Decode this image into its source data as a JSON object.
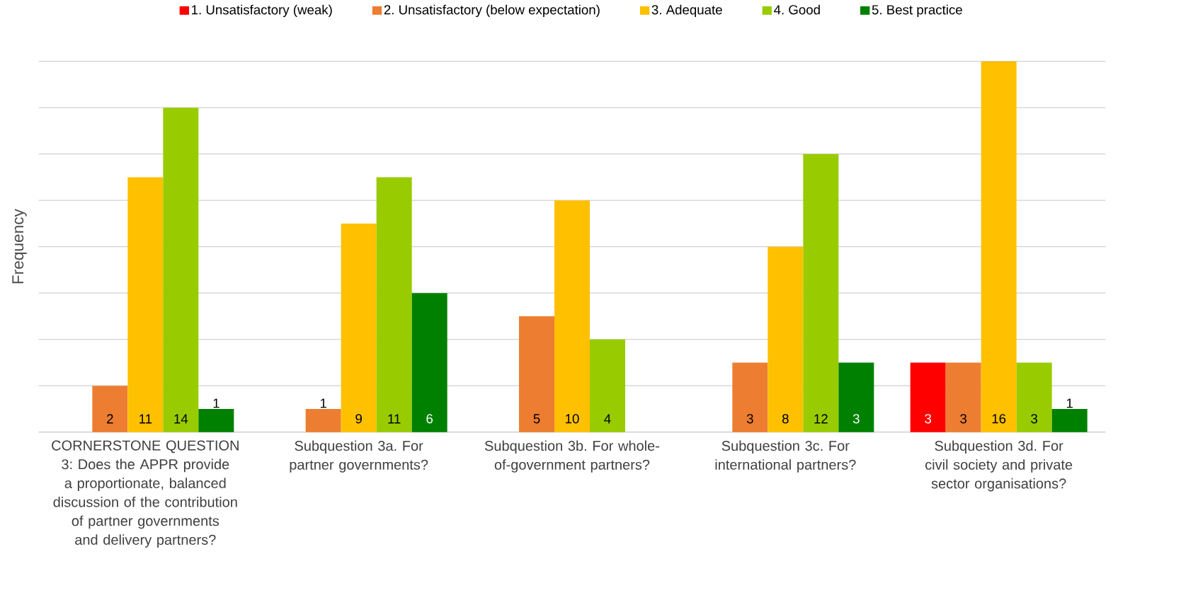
{
  "chart_data": {
    "type": "bar",
    "ylabel": "Frequency",
    "categories": [
      "CORNERSTONE QUESTION 3: Does the APPR provide a proportionate, balanced discussion of the contribution of partner governments and delivery partners?",
      "Subquestion 3a. For partner governments?",
      "Subquestion 3b. For whole-of-government partners?",
      "Subquestion 3c. For international partners?",
      "Subquestion 3d. For civil society and private sector organisations?"
    ],
    "series": [
      {
        "name": "1. Unsatisfactory (weak)",
        "color": "#ff0000",
        "values": [
          null,
          null,
          null,
          null,
          3
        ]
      },
      {
        "name": "2. Unsatisfactory (below expectation)",
        "color": "#ed7d31",
        "values": [
          2,
          1,
          5,
          3,
          3
        ]
      },
      {
        "name": "3. Adequate",
        "color": "#ffc000",
        "values": [
          11,
          9,
          10,
          8,
          16
        ]
      },
      {
        "name": "4. Good",
        "color": "#99cc00",
        "values": [
          14,
          11,
          4,
          12,
          3
        ]
      },
      {
        "name": "5. Best practice",
        "color": "#008000",
        "values": [
          1,
          6,
          null,
          3,
          1
        ]
      }
    ],
    "ylim": [
      0,
      16
    ],
    "yticks": [
      {
        "value": 0,
        "label": null
      },
      {
        "value": 2,
        "label": null
      },
      {
        "value": 4,
        "label": null
      },
      {
        "value": 6,
        "label": null
      },
      {
        "value": 8,
        "label": null
      },
      {
        "value": 10,
        "label": null
      },
      {
        "value": 12,
        "label": null
      },
      {
        "value": 14,
        "label": null
      },
      {
        "value": 16,
        "label": null
      }
    ],
    "grid": "y",
    "legend": "top",
    "data_labels": true
  }
}
